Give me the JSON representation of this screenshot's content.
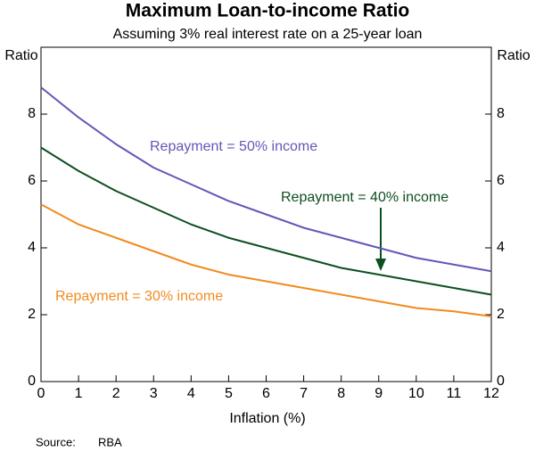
{
  "chart_data": {
    "type": "line",
    "title": "Maximum Loan-to-income Ratio",
    "subtitle": "Assuming 3% real interest rate on a 25-year loan",
    "xlabel": "Inflation (%)",
    "ylabel": "Ratio",
    "y2label": "Ratio",
    "x": [
      0,
      1,
      2,
      3,
      4,
      5,
      6,
      7,
      8,
      9,
      10,
      11,
      12
    ],
    "xlim": [
      0,
      12
    ],
    "xticks": [
      0,
      1,
      2,
      3,
      4,
      5,
      6,
      7,
      8,
      9,
      10,
      11,
      12
    ],
    "ylim": [
      0,
      10
    ],
    "yticks": [
      0,
      2,
      4,
      6,
      8
    ],
    "y2lim": [
      0,
      10
    ],
    "y2ticks": [
      0,
      2,
      4,
      6,
      8
    ],
    "grid": false,
    "series": [
      {
        "name": "Repayment = 50% income",
        "color": "#6655b8",
        "values": [
          8.8,
          7.9,
          7.1,
          6.4,
          5.9,
          5.4,
          5.0,
          4.6,
          4.3,
          4.0,
          3.7,
          3.5,
          3.3
        ]
      },
      {
        "name": "Repayment = 40% income",
        "color": "#0d4f1f",
        "values": [
          7.0,
          6.3,
          5.7,
          5.2,
          4.7,
          4.3,
          4.0,
          3.7,
          3.4,
          3.2,
          3.0,
          2.8,
          2.6
        ]
      },
      {
        "name": "Repayment = 30% income",
        "color": "#f28a1e",
        "values": [
          5.3,
          4.7,
          4.3,
          3.9,
          3.5,
          3.2,
          3.0,
          2.8,
          2.6,
          2.4,
          2.2,
          2.1,
          1.95
        ]
      }
    ],
    "source_label": "Source:",
    "source": "RBA"
  }
}
